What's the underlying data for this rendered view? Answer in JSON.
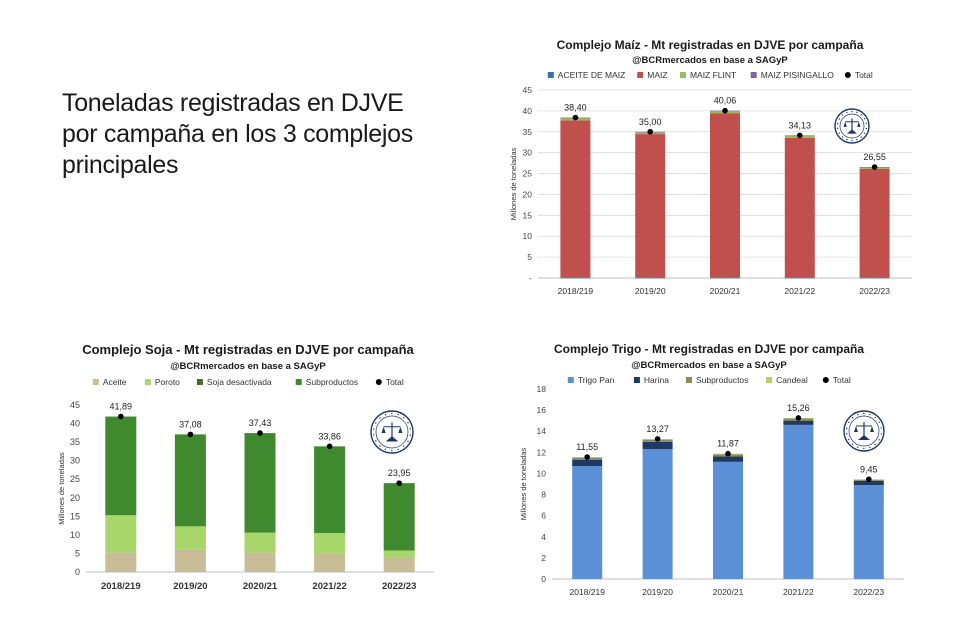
{
  "slide": {
    "title": "Toneladas registradas en DJVE por campaña en los 3 complejos principales"
  },
  "chart_data": [
    {
      "id": "maiz",
      "type": "bar",
      "stacked": true,
      "title": "Complejo Maíz - Mt registradas en DJVE por campaña",
      "subtitle": "@BCRmercados en base a SAGyP",
      "xlabel": "",
      "ylabel": "Millones de toneladas",
      "categories": [
        "2018/219",
        "2019/20",
        "2020/21",
        "2021/22",
        "2022/23"
      ],
      "ylim": [
        0,
        45
      ],
      "yticks": [
        "-",
        "5",
        "10",
        "15",
        "20",
        "25",
        "30",
        "35",
        "40",
        "45"
      ],
      "grid": true,
      "legend_position": "top",
      "series": [
        {
          "name": "ACEITE DE MAIZ",
          "color": "#2e75b6",
          "values": [
            0.05,
            0.05,
            0.05,
            0.05,
            0.05
          ]
        },
        {
          "name": "MAIZ",
          "color": "#c0504d",
          "values": [
            37.7,
            34.4,
            39.4,
            33.5,
            26.1
          ]
        },
        {
          "name": "MAIZ FLINT",
          "color": "#9bbb59",
          "values": [
            0.55,
            0.45,
            0.5,
            0.5,
            0.35
          ]
        },
        {
          "name": "MAIZ PISINGALLO",
          "color": "#8064a2",
          "values": [
            0.1,
            0.1,
            0.11,
            0.08,
            0.05
          ]
        }
      ],
      "total": {
        "name": "Total",
        "values": [
          38.4,
          35.0,
          40.06,
          34.13,
          26.55
        ],
        "labels": [
          "38,40",
          "35,00",
          "40,06",
          "34,13",
          "26,55"
        ]
      }
    },
    {
      "id": "soja",
      "type": "bar",
      "stacked": true,
      "title": "Complejo Soja - Mt registradas en DJVE por campaña",
      "subtitle": "@BCRmercados en base a SAGyP",
      "xlabel": "",
      "ylabel": "Millones de toneladas",
      "categories": [
        "2018/219",
        "2019/20",
        "2020/21",
        "2021/22",
        "2022/23"
      ],
      "ylim": [
        0,
        45
      ],
      "yticks": [
        "0",
        "5",
        "10",
        "15",
        "20",
        "25",
        "30",
        "35",
        "40",
        "45"
      ],
      "grid": false,
      "legend_position": "top",
      "series": [
        {
          "name": "Aceite",
          "color": "#c9bd98",
          "values": [
            5.3,
            6.0,
            5.3,
            4.9,
            3.9
          ]
        },
        {
          "name": "Poroto",
          "color": "#a8d66a",
          "values": [
            10.0,
            6.3,
            5.3,
            5.6,
            1.9
          ]
        },
        {
          "name": "Soja desactivada",
          "color": "#4a6b2a",
          "values": [
            0.0,
            0.0,
            0.0,
            0.0,
            0.0
          ]
        },
        {
          "name": "Subproductos",
          "color": "#3f8a2e",
          "values": [
            26.59,
            24.78,
            26.83,
            23.36,
            18.15
          ]
        }
      ],
      "total": {
        "name": "Total",
        "values": [
          41.89,
          37.08,
          37.43,
          33.86,
          23.95
        ],
        "labels": [
          "41,89",
          "37,08",
          "37,43",
          "33,86",
          "23,95"
        ]
      }
    },
    {
      "id": "trigo",
      "type": "bar",
      "stacked": true,
      "title": "Complejo Trigo - Mt registradas en DJVE por campaña",
      "subtitle": "@BCRmercados en base a SAGyP",
      "xlabel": "",
      "ylabel": "Millones de toneladas",
      "categories": [
        "2018/219",
        "2019/20",
        "2020/21",
        "2021/22",
        "2022/23"
      ],
      "ylim": [
        0,
        18
      ],
      "yticks": [
        "0",
        "2",
        "4",
        "6",
        "8",
        "10",
        "12",
        "14",
        "16",
        "18"
      ],
      "grid": false,
      "legend_position": "top",
      "series": [
        {
          "name": "Trigo Pan",
          "color": "#5b8fd6",
          "values": [
            10.7,
            12.3,
            11.1,
            14.6,
            8.9
          ]
        },
        {
          "name": "Harina",
          "color": "#1f3864",
          "values": [
            0.6,
            0.7,
            0.5,
            0.4,
            0.4
          ]
        },
        {
          "name": "Subproductos",
          "color": "#8a8a5a",
          "values": [
            0.2,
            0.2,
            0.2,
            0.2,
            0.1
          ]
        },
        {
          "name": "Candeal",
          "color": "#b3cf6e",
          "values": [
            0.05,
            0.07,
            0.07,
            0.06,
            0.05
          ]
        }
      ],
      "total": {
        "name": "Total",
        "values": [
          11.55,
          13.27,
          11.87,
          15.26,
          9.45
        ],
        "labels": [
          "11,55",
          "13,27",
          "11,87",
          "15,26",
          "9,45"
        ]
      }
    }
  ],
  "seal": {
    "text": "BOLSA DE COMERCIO DE ROSARIO",
    "color": "#1f3864"
  }
}
